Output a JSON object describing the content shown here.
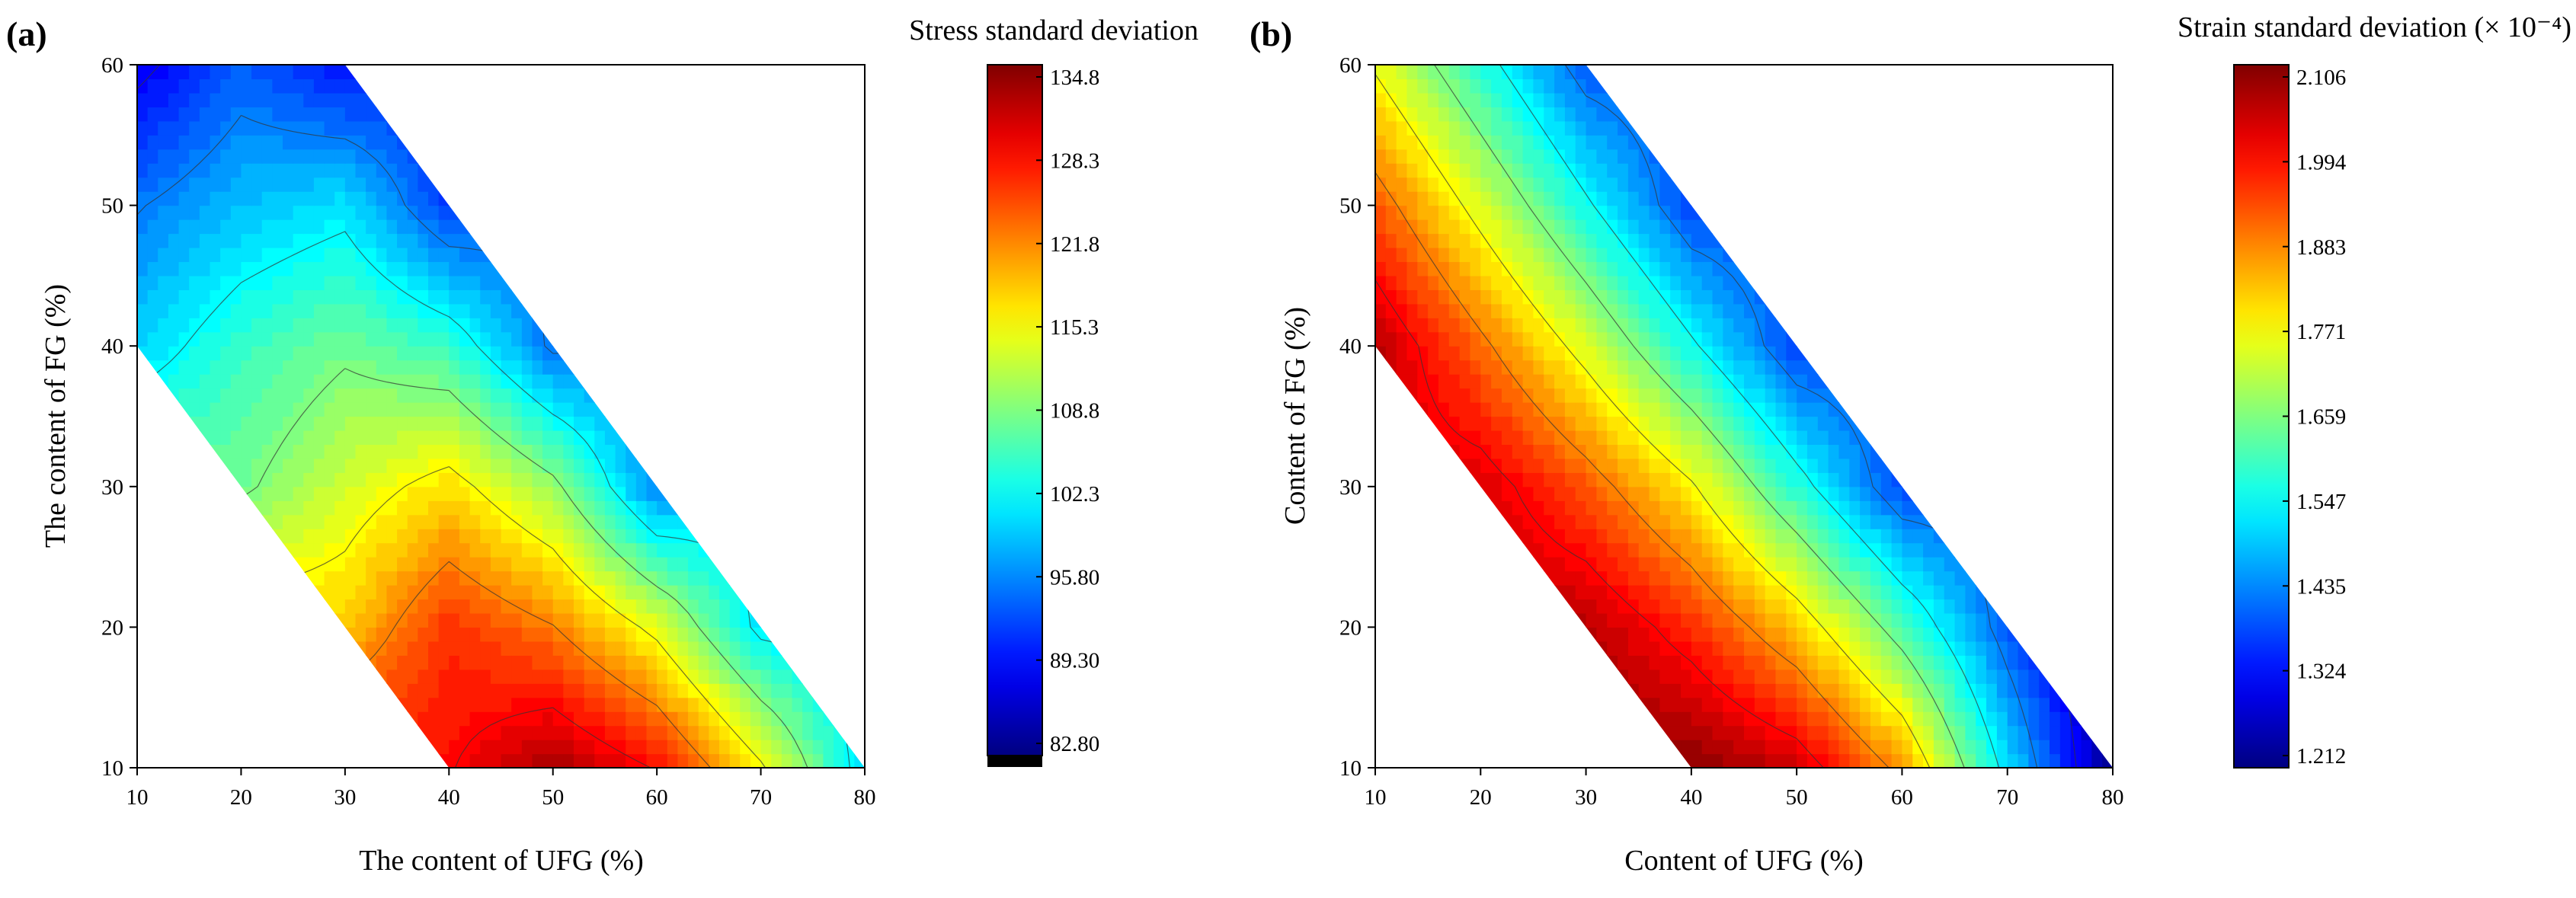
{
  "figure": {
    "layout": "two contour plots side by side"
  },
  "chart_data": [
    {
      "type": "heatmap",
      "panel_label": "(a)",
      "xlabel": "The content of UFG (%)",
      "ylabel": "The content of FG (%)",
      "colorbar_title": "Stress standard deviation",
      "colorbar_ticks": [
        "134.8",
        "128.3",
        "121.8",
        "115.3",
        "108.8",
        "102.3",
        "95.80",
        "89.30",
        "82.80"
      ],
      "colorbar_range": [
        82.8,
        134.8
      ],
      "colorbar_has_below_min_black": true,
      "xlim": [
        10,
        80
      ],
      "ylim": [
        10,
        60
      ],
      "xticks": [
        10,
        20,
        30,
        40,
        50,
        60,
        70,
        80
      ],
      "yticks": [
        10,
        20,
        30,
        40,
        50,
        60
      ],
      "domain_polygon": [
        [
          10,
          40
        ],
        [
          10,
          60
        ],
        [
          30,
          60
        ],
        [
          80,
          10
        ],
        [
          40,
          10
        ]
      ],
      "colormap": "jet",
      "contour_lines": true,
      "grid_x": [
        10,
        20,
        30,
        40,
        50,
        60,
        70,
        80
      ],
      "grid_y": [
        10,
        20,
        30,
        40,
        50,
        60
      ],
      "values": [
        [
          null,
          null,
          null,
          128.0,
          133.0,
          128.0,
          116.0,
          100.0
        ],
        [
          null,
          null,
          118.0,
          126.0,
          122.0,
          114.0,
          101.0,
          null
        ],
        [
          null,
          108.0,
          113.0,
          117.0,
          110.0,
          96.0,
          null,
          null
        ],
        [
          100.0,
          105.0,
          108.0,
          105.0,
          95.0,
          null,
          null,
          null
        ],
        [
          95.5,
          99.0,
          101.0,
          92.0,
          null,
          null,
          null,
          null
        ],
        [
          88.0,
          94.0,
          90.0,
          null,
          null,
          null,
          null,
          null
        ]
      ]
    },
    {
      "type": "heatmap",
      "panel_label": "(b)",
      "xlabel": "Content of UFG (%)",
      "ylabel": "Content of FG (%)",
      "colorbar_title": "Strain standard deviation",
      "colorbar_title_suffix": "(× 10⁻⁴)",
      "colorbar_ticks": [
        "2.106",
        "1.994",
        "1.883",
        "1.771",
        "1.659",
        "1.547",
        "1.435",
        "1.324",
        "1.212"
      ],
      "colorbar_range": [
        1.212,
        2.106
      ],
      "xlim": [
        10,
        80
      ],
      "ylim": [
        10,
        60
      ],
      "xticks": [
        10,
        20,
        30,
        40,
        50,
        60,
        70,
        80
      ],
      "yticks": [
        10,
        20,
        30,
        40,
        50,
        60
      ],
      "domain_polygon": [
        [
          10,
          40
        ],
        [
          10,
          60
        ],
        [
          30,
          60
        ],
        [
          80,
          10
        ],
        [
          40,
          10
        ]
      ],
      "colormap": "jet",
      "contour_lines": true,
      "grid_x": [
        10,
        20,
        30,
        40,
        50,
        60,
        70,
        80
      ],
      "grid_y": [
        10,
        20,
        30,
        40,
        50,
        60
      ],
      "values": [
        [
          null,
          null,
          null,
          2.1,
          2.04,
          1.86,
          1.52,
          1.22
        ],
        [
          null,
          null,
          2.06,
          1.96,
          1.82,
          1.62,
          1.4,
          null
        ],
        [
          null,
          2.03,
          1.92,
          1.78,
          1.58,
          1.38,
          null,
          null
        ],
        [
          2.06,
          1.9,
          1.74,
          1.56,
          1.38,
          null,
          null,
          null
        ],
        [
          1.92,
          1.74,
          1.56,
          1.38,
          null,
          null,
          null,
          null
        ],
        [
          1.76,
          1.58,
          1.4,
          null,
          null,
          null,
          null,
          null
        ]
      ]
    }
  ]
}
